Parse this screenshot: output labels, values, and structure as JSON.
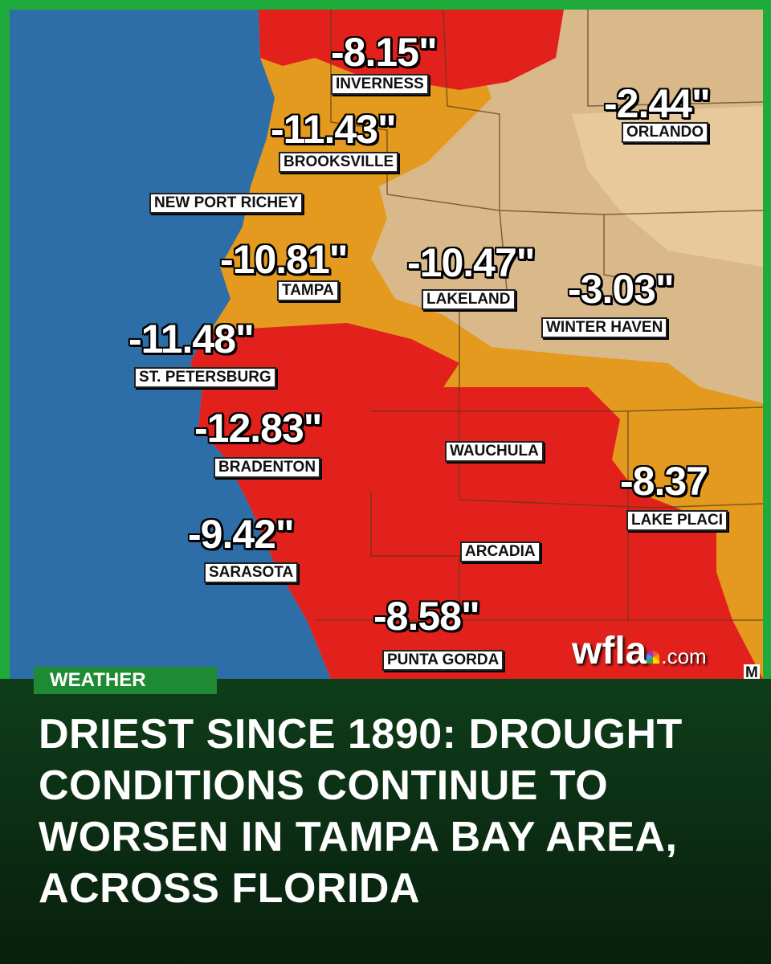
{
  "map": {
    "zones": {
      "gulf": "#2d6ea8",
      "extreme": "#e3211c",
      "severe": "#e39a1e",
      "moderate": "#d9b98a",
      "abnormal": "#e8c99b"
    },
    "labels": [
      {
        "value": "-8.15\"",
        "city": "INVERNESS"
      },
      {
        "value": "-2.44\"",
        "city": "ORLANDO"
      },
      {
        "value": "-11.43\"",
        "city": "BROOKSVILLE"
      },
      {
        "value": "",
        "city": "NEW PORT RICHEY"
      },
      {
        "value": "-10.81\"",
        "city": "TAMPA"
      },
      {
        "value": "-10.47\"",
        "city": "LAKELAND"
      },
      {
        "value": "-3.03\"",
        "city": "WINTER HAVEN"
      },
      {
        "value": "-11.48\"",
        "city": "ST. PETERSBURG"
      },
      {
        "value": "-12.83\"",
        "city": "BRADENTON"
      },
      {
        "value": "",
        "city": "WAUCHULA"
      },
      {
        "value": "-8.37",
        "city": "LAKE PLACI"
      },
      {
        "value": "-9.42\"",
        "city": "SARASOTA"
      },
      {
        "value": "",
        "city": "ARCADIA"
      },
      {
        "value": "-8.58\"",
        "city": "PUNTA GORDA"
      }
    ],
    "watermark": {
      "main": "wfla",
      "suffix": ".com",
      "edge": "M"
    }
  },
  "section_tag": "WEATHER",
  "headline": "DRIEST SINCE 1890: DROUGHT CONDITIONS CONTINUE TO WORSEN IN TAMPA BAY AREA, ACROSS FLORIDA"
}
